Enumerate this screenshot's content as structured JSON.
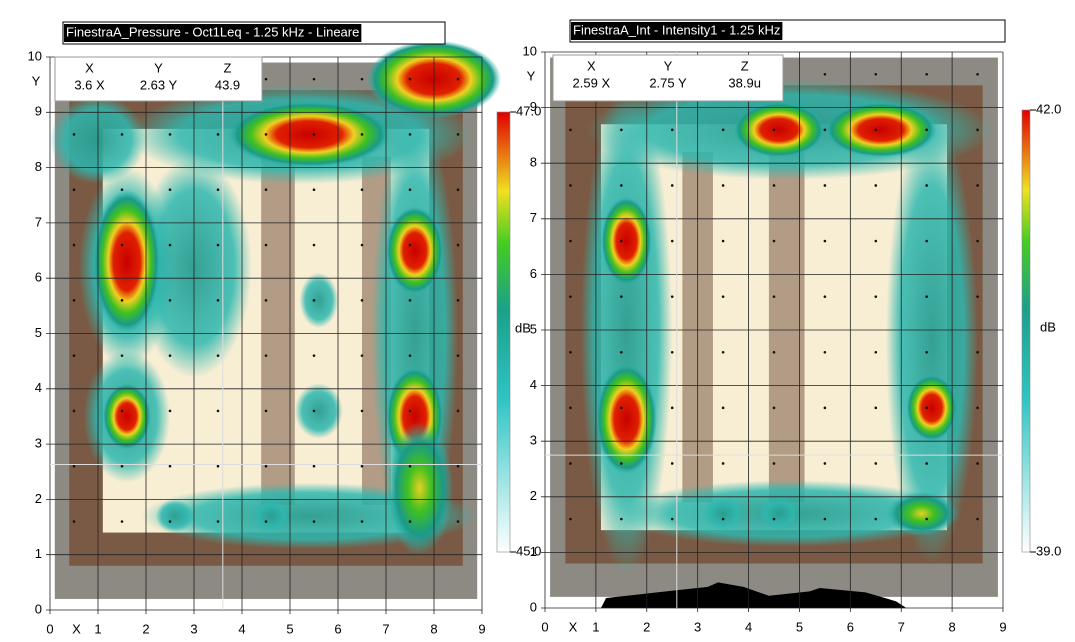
{
  "chart_data": [
    {
      "type": "heatmap",
      "title": "FinestraA_Pressure - Oct1Leq - 1.25 kHz - Lineare",
      "x_label": "X",
      "y_label": "Y",
      "xlim": [
        0,
        9
      ],
      "ylim": [
        0,
        10
      ],
      "xticks": [
        0,
        1,
        2,
        3,
        4,
        5,
        6,
        7,
        8,
        9
      ],
      "yticks": [
        0,
        1,
        2,
        3,
        4,
        5,
        6,
        7,
        8,
        9,
        10
      ],
      "cursor": {
        "labels": [
          "X",
          "Y",
          "Z"
        ],
        "values": [
          "3.6 X",
          "2.63 Y",
          43.9
        ],
        "x": 3.6,
        "y": 2.63
      },
      "colorbar": {
        "label": "dB",
        "lim": [
          45,
          47
        ],
        "ticks": [
          {
            "value": 47,
            "label": "47.0"
          },
          {
            "value": 45,
            "label": "45.0"
          }
        ]
      }
    },
    {
      "type": "heatmap",
      "title": "FinestraA_Int - Intensity1 - 1.25 kHz",
      "x_label": "X",
      "y_label": "Y",
      "xlim": [
        0,
        9
      ],
      "ylim": [
        0,
        10
      ],
      "xticks": [
        0,
        1,
        2,
        3,
        4,
        5,
        6,
        7,
        8,
        9
      ],
      "yticks": [
        0,
        1,
        2,
        3,
        4,
        5,
        6,
        7,
        8,
        9,
        10
      ],
      "cursor": {
        "labels": [
          "X",
          "Y",
          "Z"
        ],
        "values": [
          "2.59 X",
          "2.75 Y",
          "38.9u"
        ],
        "x": 2.59,
        "y": 2.75
      },
      "colorbar": {
        "label": "dB",
        "lim": [
          39,
          42
        ],
        "ticks": [
          {
            "value": 42,
            "label": "42.0"
          },
          {
            "value": 39,
            "label": "39.0"
          }
        ]
      }
    }
  ]
}
